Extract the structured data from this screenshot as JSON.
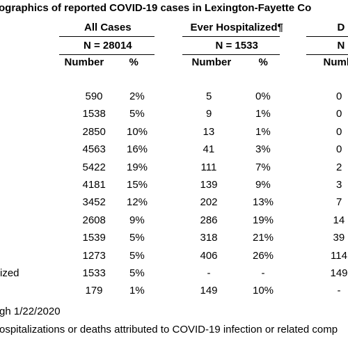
{
  "title": "ographics of reported COVID-19 cases in Lexington-Fayette Co",
  "groups": [
    {
      "label": "All Cases",
      "n": "N = 28014"
    },
    {
      "label": "Ever Hospitalized¶",
      "n": "N = 1533"
    },
    {
      "label": "D",
      "n": "N"
    }
  ],
  "subheaders": [
    "Number",
    "%",
    "Number",
    "%",
    "Numb"
  ],
  "rows": [
    {
      "cells": [
        "590",
        "2%",
        "5",
        "0%",
        "0"
      ]
    },
    {
      "cells": [
        "1538",
        "5%",
        "9",
        "1%",
        "0"
      ]
    },
    {
      "cells": [
        "2850",
        "10%",
        "13",
        "1%",
        "0"
      ]
    },
    {
      "cells": [
        "4563",
        "16%",
        "41",
        "3%",
        "0"
      ]
    },
    {
      "cells": [
        "5422",
        "19%",
        "111",
        "7%",
        "2"
      ]
    },
    {
      "cells": [
        "4181",
        "15%",
        "139",
        "9%",
        "3"
      ]
    },
    {
      "cells": [
        "3452",
        "12%",
        "202",
        "13%",
        "7"
      ]
    },
    {
      "cells": [
        "2608",
        "9%",
        "286",
        "19%",
        "14"
      ]
    },
    {
      "cells": [
        "1539",
        "5%",
        "318",
        "21%",
        "39"
      ]
    },
    {
      "cells": [
        "1273",
        "5%",
        "406",
        "26%",
        "114"
      ]
    },
    {
      "label": "ized",
      "cells": [
        "1533",
        "5%",
        "-",
        "-",
        "149"
      ]
    },
    {
      "cells": [
        "179",
        "1%",
        "149",
        "10%",
        "-"
      ]
    }
  ],
  "footnotes": [
    "gh 1/22/2020",
    "ospitalizations or deaths attributed to COVID-19 infection or related comp"
  ]
}
